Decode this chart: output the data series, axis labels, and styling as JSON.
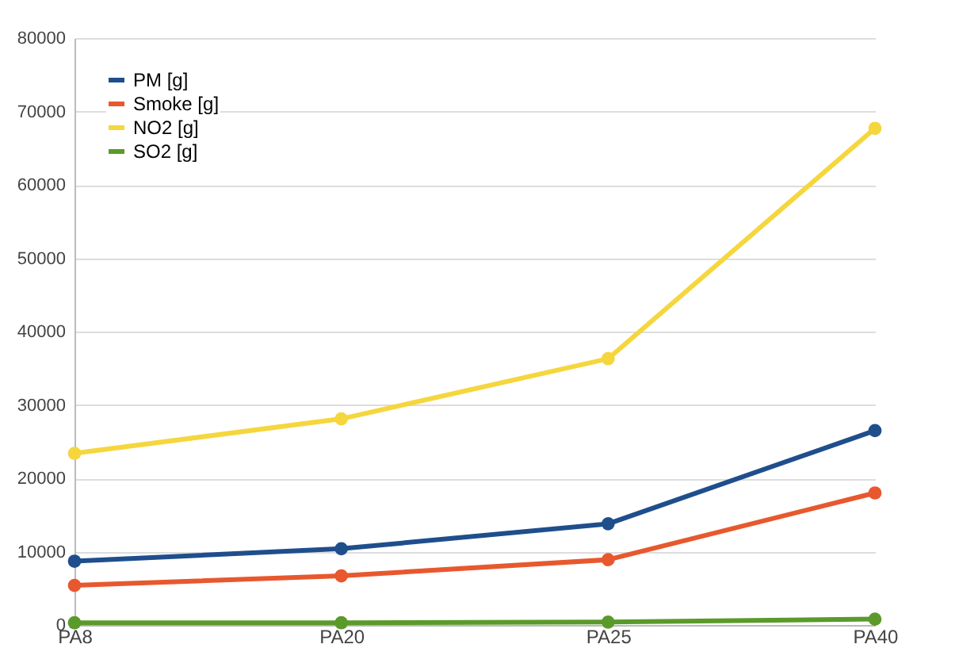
{
  "chart_data": {
    "type": "line",
    "categories": [
      "PA8",
      "PA20",
      "PA25",
      "PA40"
    ],
    "series": [
      {
        "name": "PM [g]",
        "color": "#1f4e8c",
        "values": [
          8700,
          10400,
          13800,
          26500
        ]
      },
      {
        "name": "Smoke [g]",
        "color": "#e8582e",
        "values": [
          5400,
          6700,
          8900,
          18000
        ]
      },
      {
        "name": "NO2 [g]",
        "color": "#f5d63d",
        "values": [
          23400,
          28100,
          36300,
          67700
        ]
      },
      {
        "name": "SO2 [g]",
        "color": "#5a9a2a",
        "values": [
          300,
          300,
          400,
          800
        ]
      }
    ],
    "ylim": [
      0,
      80000
    ],
    "yticks": [
      0,
      10000,
      20000,
      30000,
      40000,
      50000,
      60000,
      70000,
      80000
    ],
    "grid": "y",
    "legend": "top left",
    "marker": "circle",
    "line_style": "solid"
  }
}
